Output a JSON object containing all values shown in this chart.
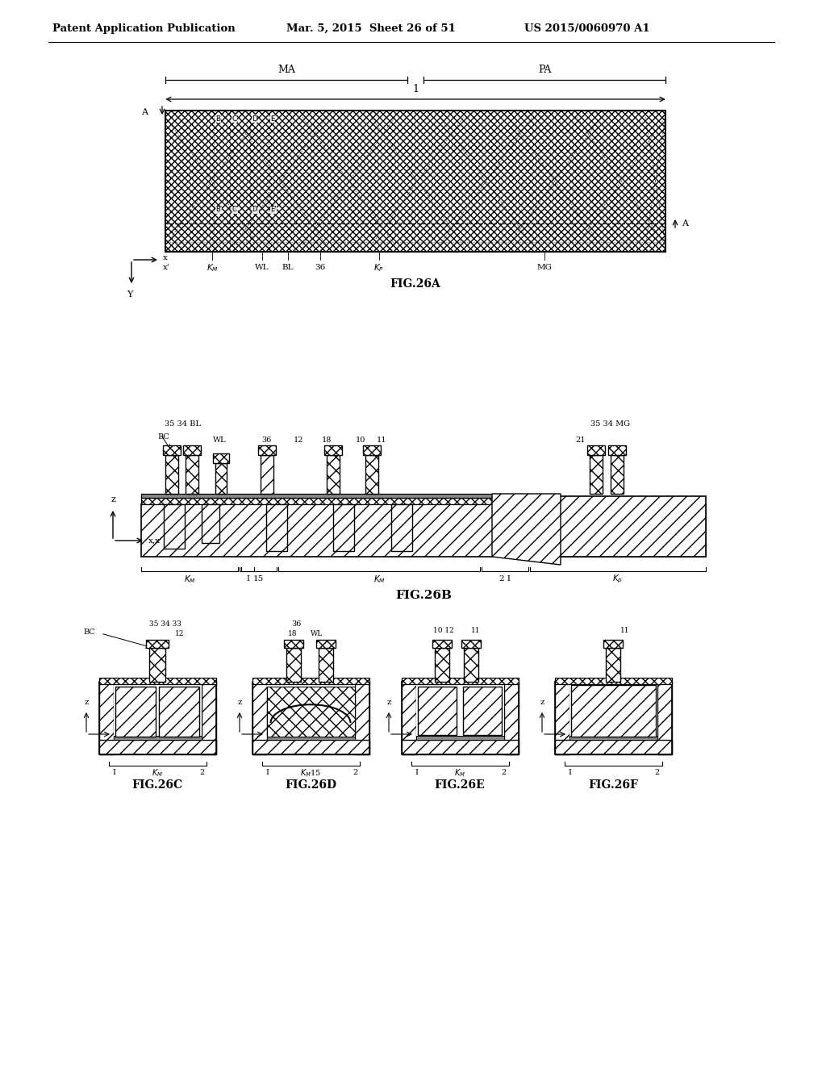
{
  "header_left": "Patent Application Publication",
  "header_mid": "Mar. 5, 2015  Sheet 26 of 51",
  "header_right": "US 2015/0060970 A1",
  "fig26a_label": "FIG.26A",
  "fig26b_label": "FIG.26B",
  "fig26c_label": "FIG.26C",
  "fig26d_label": "FIG.26D",
  "fig26e_label": "FIG.26E",
  "fig26f_label": "FIG.26F",
  "bg_color": "#ffffff",
  "line_color": "#000000"
}
